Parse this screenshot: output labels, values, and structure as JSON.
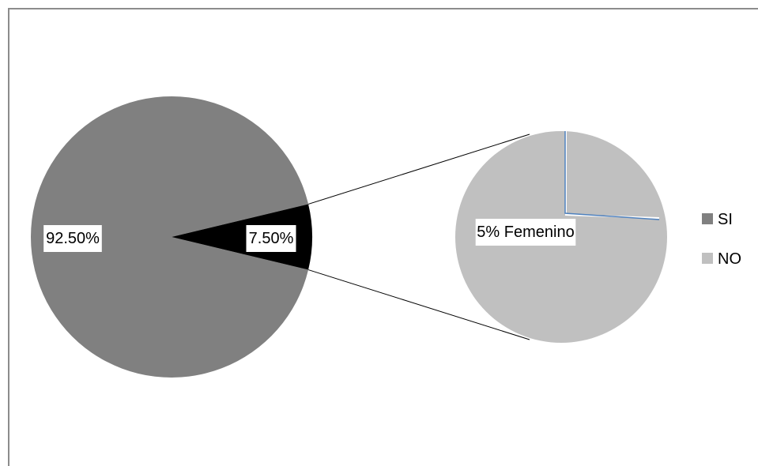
{
  "chart_data": {
    "type": "pie",
    "subtype": "pie-of-pie",
    "categories": [
      "SI",
      "NO"
    ],
    "values": [
      92.5,
      7.5
    ],
    "value_labels": [
      "92.50%",
      "7.50%"
    ],
    "colors": [
      "#808080",
      "#000000"
    ],
    "secondary": {
      "categories": [
        "NO"
      ],
      "values": [
        5
      ],
      "value_labels": [
        "5% Femenino"
      ],
      "colors": [
        "#c0c0c0"
      ],
      "split_color": "#4f81bd"
    },
    "legend": {
      "placement": "right",
      "entries": [
        {
          "label": "SI",
          "color": "#808080"
        },
        {
          "label": "NO",
          "color": "#c0c0c0"
        }
      ]
    }
  }
}
